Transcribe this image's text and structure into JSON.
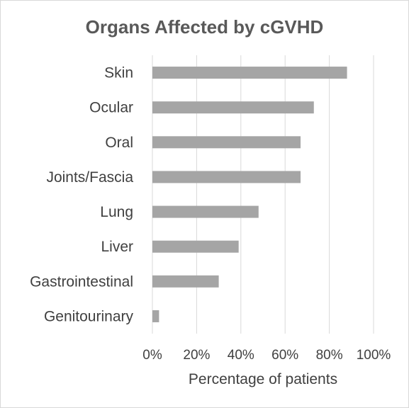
{
  "chart_data": {
    "type": "bar",
    "orientation": "horizontal",
    "title": "Organs Affected by cGVHD",
    "xlabel": "Percentage of patients",
    "ylabel": "",
    "categories": [
      "Skin",
      "Ocular",
      "Oral",
      "Joints/Fascia",
      "Lung",
      "Liver",
      "Gastrointestinal",
      "Genitourinary"
    ],
    "values": [
      88,
      73,
      67,
      67,
      48,
      39,
      30,
      3
    ],
    "xlim": [
      0,
      100
    ],
    "x_ticks": [
      "0%",
      "20%",
      "40%",
      "60%",
      "80%",
      "100%"
    ],
    "grid": "vertical",
    "bar_color": "#a5a5a5",
    "legend": "none"
  }
}
